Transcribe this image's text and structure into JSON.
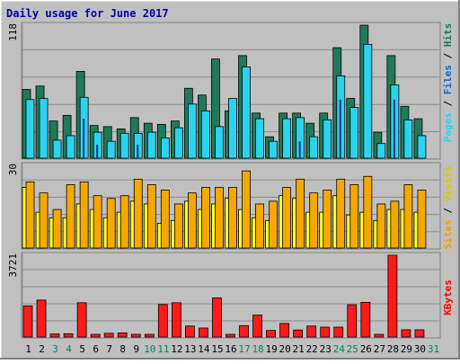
{
  "chart_data": {
    "type": "bar",
    "title": "Daily usage for June 2017",
    "categories": [
      "1",
      "2",
      "3",
      "4",
      "5",
      "6",
      "7",
      "8",
      "9",
      "10",
      "11",
      "12",
      "13",
      "14",
      "15",
      "16",
      "17",
      "18",
      "19",
      "20",
      "21",
      "22",
      "23",
      "24",
      "25",
      "26",
      "27",
      "28",
      "29",
      "30",
      "31"
    ],
    "weekend_days": [
      3,
      4,
      10,
      11,
      17,
      18,
      24,
      25,
      31
    ],
    "panels": [
      {
        "id": "hits-files-pages",
        "ymax_label": "118",
        "ymax": 118,
        "series": [
          {
            "name": "Hits",
            "color": "#1e7a58",
            "values": [
              61,
              64,
              33,
              38,
              77,
              29,
              28,
              26,
              36,
              31,
              30,
              33,
              62,
              56,
              88,
              42,
              91,
              40,
              19,
              40,
              40,
              31,
              40,
              98,
              53,
              118,
              23,
              91,
              46,
              35,
              null
            ]
          },
          {
            "name": "Files",
            "color": "#2ad4f0",
            "values": [
              52,
              53,
              16,
              20,
              54,
              23,
              15,
              22,
              22,
              23,
              18,
              27,
              48,
              42,
              28,
              53,
              81,
              35,
              15,
              35,
              36,
              19,
              34,
              73,
              45,
              101,
              13,
              65,
              34,
              20,
              null
            ]
          },
          {
            "name": "Pages",
            "color": "#22308a",
            "values": [
              0,
              0,
              0,
              0,
              35,
              12,
              0,
              0,
              12,
              0,
              0,
              0,
              0,
              0,
              0,
              0,
              0,
              0,
              0,
              0,
              15,
              0,
              0,
              52,
              0,
              0,
              0,
              52,
              0,
              0,
              null
            ]
          }
        ]
      },
      {
        "id": "visits-sites",
        "ymax_label": "30",
        "ymax": 30,
        "series": [
          {
            "name": "Visits",
            "color": "#f5a800",
            "values": [
              24,
              20,
              14,
              23,
              24,
              19,
              18,
              19,
              25,
              23,
              21,
              16,
              20,
              22,
              22,
              22,
              28,
              16,
              17,
              22,
              25,
              20,
              21,
              25,
              23,
              26,
              16,
              17,
              23,
              21,
              null
            ]
          },
          {
            "name": "Sites",
            "color": "#ffff22",
            "values": [
              22,
              13,
              11,
              11,
              16,
              14,
              11,
              13,
              17,
              16,
              9,
              10,
              17,
              14,
              16,
              18,
              14,
              11,
              10,
              19,
              18,
              13,
              13,
              19,
              12,
              13,
              10,
              14,
              14,
              13,
              null
            ]
          }
        ]
      },
      {
        "id": "kbytes",
        "ymax_label": "3721",
        "ymax": 3721,
        "series": [
          {
            "name": "KBytes",
            "color": "#ff1a1a",
            "values": [
              1420,
              1680,
              140,
              150,
              1560,
              60,
              170,
              190,
              90,
              90,
              1480,
              1560,
              500,
              410,
              1780,
              60,
              520,
              1000,
              300,
              620,
              320,
              500,
              450,
              450,
              1470,
              1580,
              60,
              3721,
              330,
              330,
              null
            ]
          }
        ]
      }
    ]
  }
}
